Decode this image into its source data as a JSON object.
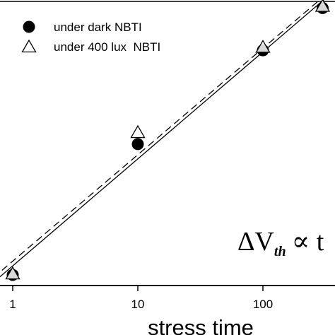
{
  "chart_data": {
    "type": "scatter",
    "title": "",
    "xlabel": "stress time",
    "ylabel": "",
    "xscale": "log",
    "xlim": [
      0.7,
      360
    ],
    "x_ticks": [
      {
        "value": 1,
        "label": "1"
      },
      {
        "value": 10,
        "label": "10"
      },
      {
        "value": 100,
        "label": "100"
      }
    ],
    "ylim": [
      0.79,
      1.22
    ],
    "grid": false,
    "legend_position": "top-left",
    "series": [
      {
        "name": "under dark NBTI",
        "marker": "filled-circle",
        "color": "#000000",
        "fit_line": "solid",
        "x": [
          1,
          10,
          100,
          300
        ],
        "y": [
          0.806,
          1.004,
          1.146,
          1.21
        ]
      },
      {
        "name": "under 400 lux  NBTI",
        "marker": "open-triangle",
        "color": "#000000",
        "fit_line": "dashed",
        "x": [
          1,
          10,
          100,
          300
        ],
        "y": [
          0.807,
          1.021,
          1.15,
          1.212
        ]
      }
    ],
    "annotation": {
      "delta": "ΔV",
      "subscript": "th",
      "relation": "∝ t"
    }
  }
}
